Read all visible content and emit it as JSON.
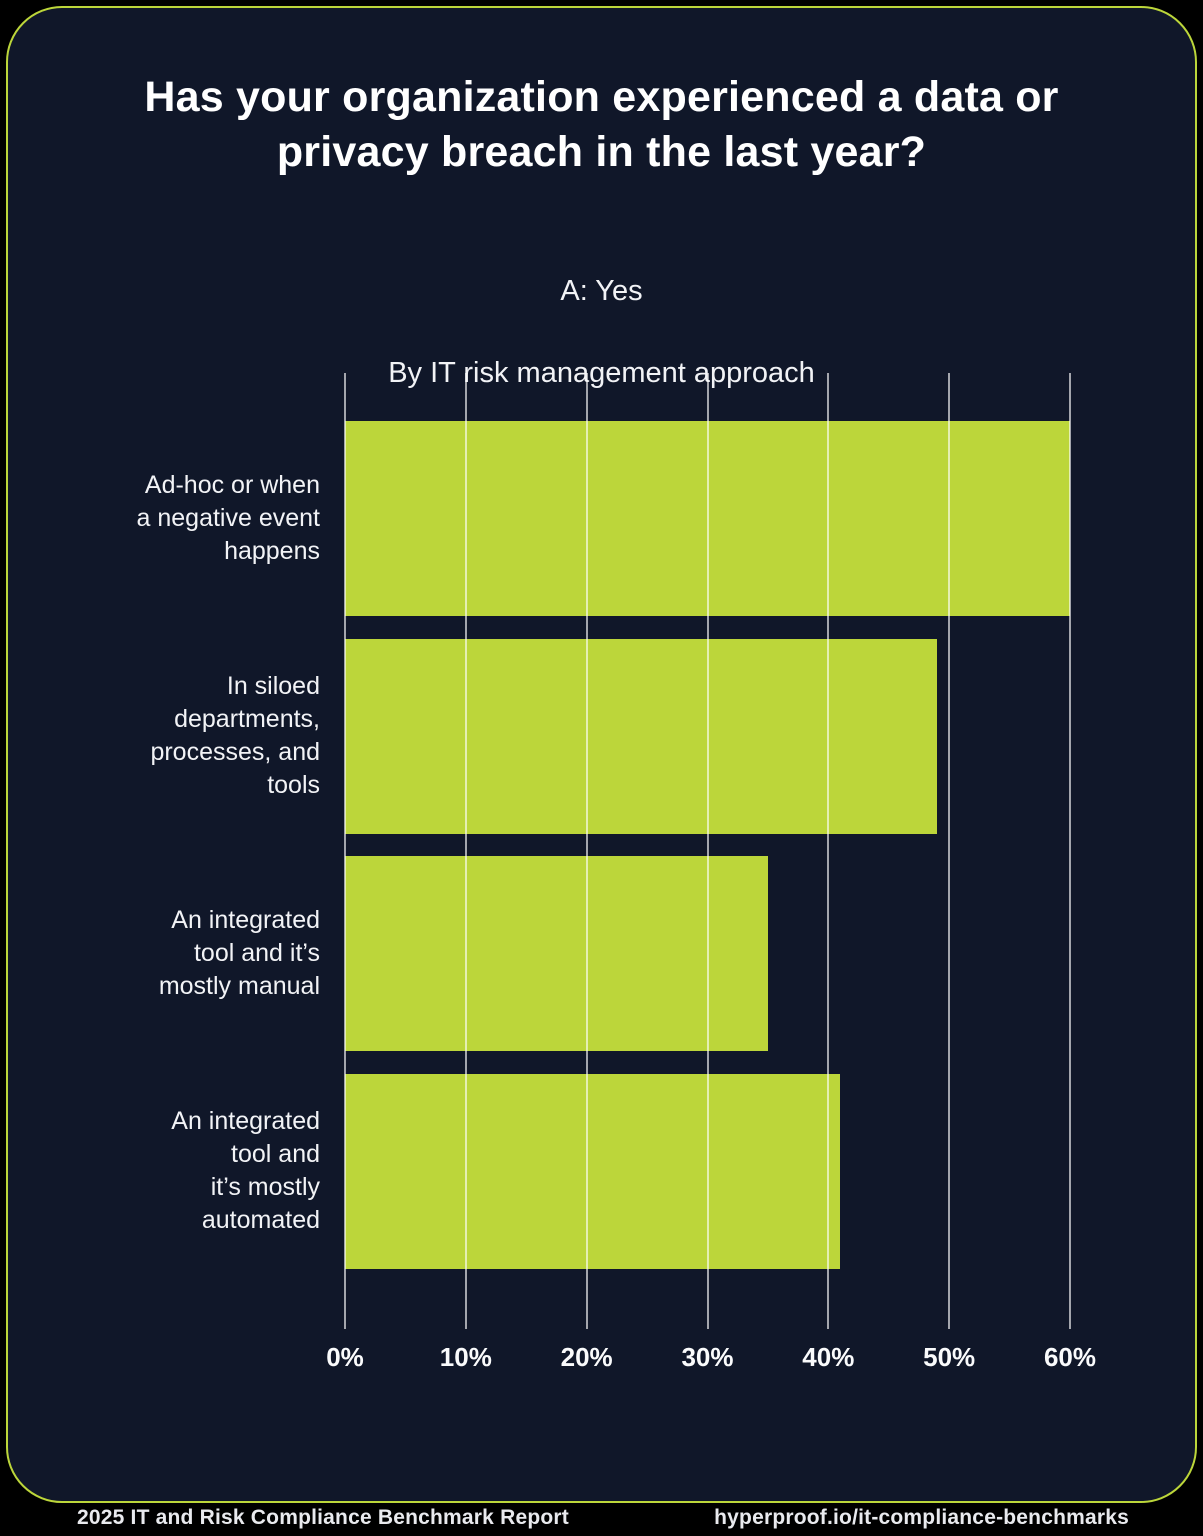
{
  "title": "Has your organization experienced a data or\nprivacy breach in the last year?",
  "subtitle": {
    "answer": "A: Yes",
    "breakdown": "By IT risk management approach"
  },
  "chart_data": {
    "type": "bar",
    "orientation": "horizontal",
    "title": "Has your organization experienced a data or privacy breach in the last year?",
    "subtitle": "A: Yes — By IT risk management approach",
    "categories": [
      "Ad-hoc or when\na negative event\nhappens",
      "In siloed\ndepartments,\nprocesses, and\ntools",
      "An integrated\ntool and it’s\nmostly manual",
      "An integrated\ntool and\nit’s mostly\nautomated"
    ],
    "values": [
      60,
      49,
      35,
      41
    ],
    "unit": "%",
    "xlim": [
      0,
      60
    ],
    "xticks": [
      "0%",
      "10%",
      "20%",
      "30%",
      "40%",
      "50%",
      "60%"
    ],
    "grid": "vertical-on",
    "legend": "none"
  },
  "colors": {
    "bar": "#BCD63A",
    "card_background": "#101729",
    "card_border": "#BCD63A",
    "page_background": "#000000",
    "text": "#FFFFFF",
    "gridline": "rgba(255,255,255,0.62)"
  },
  "footer": {
    "left": "2025 IT and Risk Compliance Benchmark Report",
    "right": "hyperproof.io/it-compliance-benchmarks"
  }
}
